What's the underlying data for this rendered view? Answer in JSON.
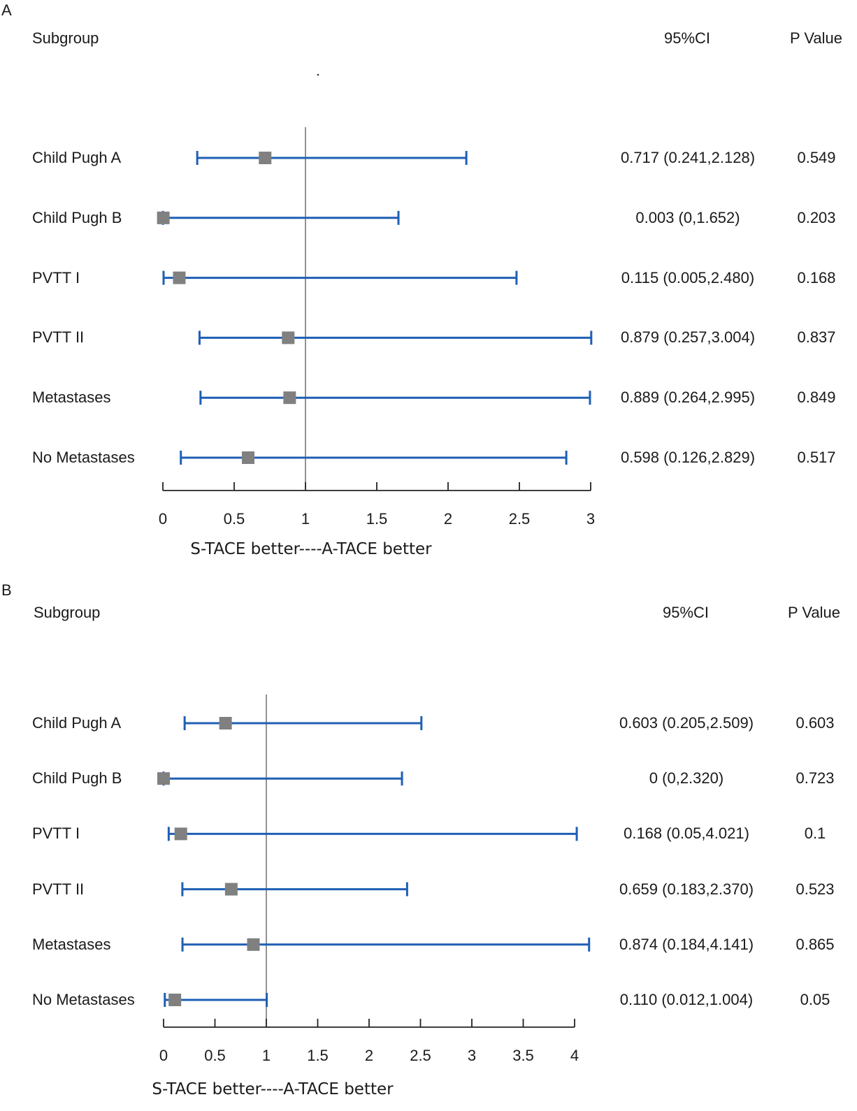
{
  "chart_data": [
    {
      "type": "forest",
      "panel_label": "A",
      "header": {
        "subgroup": "Subgroup",
        "ci": "95%CI",
        "p": "P Value"
      },
      "xlim": [
        0,
        3
      ],
      "reference_line": 1,
      "ticks": [
        "0",
        "0.5",
        "1",
        "1.5",
        "2",
        "2.5",
        "3"
      ],
      "xlabel": "S-TACE better----A-TACE better",
      "rows": [
        {
          "label": "Child Pugh A",
          "estimate": 0.717,
          "lower": 0.241,
          "upper": 2.128,
          "ci_text": "0.717 (0.241,2.128)",
          "p": "0.549"
        },
        {
          "label": "Child Pugh B",
          "estimate": 0.003,
          "lower": 0,
          "upper": 1.652,
          "ci_text": "0.003 (0,1.652)",
          "p": "0.203"
        },
        {
          "label": "PVTT I",
          "estimate": 0.115,
          "lower": 0.005,
          "upper": 2.48,
          "ci_text": "0.115 (0.005,2.480)",
          "p": "0.168"
        },
        {
          "label": "PVTT II",
          "estimate": 0.879,
          "lower": 0.257,
          "upper": 3.004,
          "ci_text": "0.879 (0.257,3.004)",
          "p": "0.837"
        },
        {
          "label": "Metastases",
          "estimate": 0.889,
          "lower": 0.264,
          "upper": 2.995,
          "ci_text": "0.889 (0.264,2.995)",
          "p": "0.849"
        },
        {
          "label": "No Metastases",
          "estimate": 0.598,
          "lower": 0.126,
          "upper": 2.829,
          "ci_text": "0.598 (0.126,2.829)",
          "p": "0.517"
        }
      ]
    },
    {
      "type": "forest",
      "panel_label": "B",
      "header": {
        "subgroup": "Subgroup",
        "ci": "95%CI",
        "p": "P Value"
      },
      "xlim": [
        0,
        4
      ],
      "reference_line": 1,
      "ticks": [
        "0",
        "0.5",
        "1",
        "1.5",
        "2",
        "2.5",
        "3",
        "3.5",
        "4"
      ],
      "xlabel": "S-TACE better----A-TACE better",
      "rows": [
        {
          "label": "Child Pugh A",
          "estimate": 0.603,
          "lower": 0.205,
          "upper": 2.509,
          "ci_text": "0.603 (0.205,2.509)",
          "p": "0.603"
        },
        {
          "label": "Child Pugh B",
          "estimate": 0,
          "lower": 0,
          "upper": 2.32,
          "ci_text": "0 (0,2.320)",
          "p": "0.723"
        },
        {
          "label": "PVTT I",
          "estimate": 0.168,
          "lower": 0.05,
          "upper": 4.021,
          "ci_text": "0.168 (0.05,4.021)",
          "p": "0.1"
        },
        {
          "label": "PVTT II",
          "estimate": 0.659,
          "lower": 0.183,
          "upper": 2.37,
          "ci_text": "0.659 (0.183,2.370)",
          "p": "0.523"
        },
        {
          "label": "Metastases",
          "estimate": 0.874,
          "lower": 0.184,
          "upper": 4.141,
          "ci_text": "0.874 (0.184,4.141)",
          "p": "0.865"
        },
        {
          "label": "No Metastases",
          "estimate": 0.11,
          "lower": 0.012,
          "upper": 1.004,
          "ci_text": "0.110 (0.012,1.004)",
          "p": "0.05"
        }
      ]
    }
  ],
  "colors": {
    "ci_line": "#1f5fb4",
    "marker": "#808080",
    "axis": "#222222",
    "reference": "#777777"
  }
}
